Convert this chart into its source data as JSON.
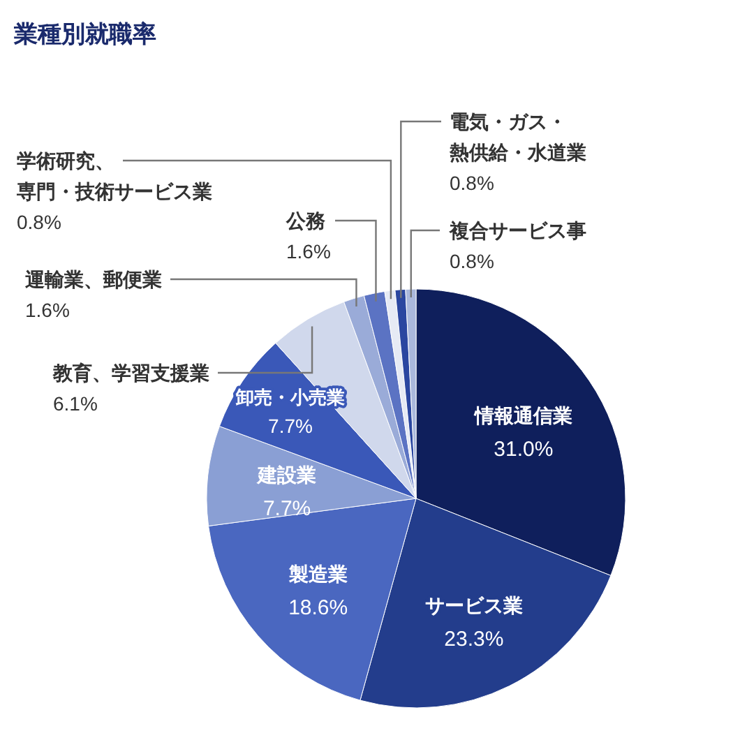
{
  "chart_data": {
    "type": "pie",
    "title": "業種別就職率",
    "categories": [
      "情報通信業",
      "サービス業",
      "製造業",
      "建設業",
      "卸売・小売業",
      "教育、学習支援業",
      "運輸業、郵便業",
      "公務",
      "学術研究、専門・技術サービス業",
      "電気・ガス・熱供給・水道業",
      "複合サービス事"
    ],
    "values": [
      31.0,
      23.3,
      18.6,
      7.7,
      7.7,
      6.1,
      1.6,
      1.6,
      0.8,
      0.8,
      0.8
    ],
    "colors": [
      "#0f1f5c",
      "#233d8c",
      "#4a67c0",
      "#8a9fd4",
      "#3a58b8",
      "#d0d8ec",
      "#9aabd8",
      "#5b73c3",
      "#e6eaf4",
      "#2a46a0",
      "#aab8dc"
    ],
    "value_labels": [
      "31.0%",
      "23.3%",
      "18.6%",
      "7.7%",
      "7.7%",
      "6.1%",
      "1.6%",
      "1.6%",
      "0.8%",
      "0.8%",
      "0.8%"
    ]
  }
}
